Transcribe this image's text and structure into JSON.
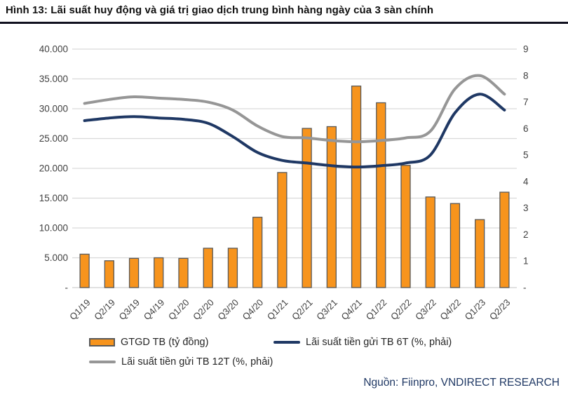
{
  "header": {
    "title": "Hình 13: Lãi suất huy động và giá trị giao dịch trung bình hàng ngày của 3 sàn chính"
  },
  "source": {
    "label": "Nguồn: Fiinpro, VNDIRECT RESEARCH"
  },
  "legend": [
    {
      "label": "GTGD  TB (tỷ đồng)"
    },
    {
      "label": "Lãi suất tiền gửi TB 6T (%, phải)"
    },
    {
      "label": "Lãi suất tiền gửi TB 12T  (%, phải)"
    }
  ],
  "colors": {
    "bar_fill": "#F7941D",
    "bar_border": "#595959",
    "line_6t": "#1F3864",
    "line_12t": "#969696",
    "grid": "#D9D9D9",
    "axis_text": "#404040",
    "title_text": "#111111",
    "source_text": "#1F3864",
    "divider": "#10101F"
  },
  "chart_data": {
    "type": "bar+line",
    "title": "Hình 13: Lãi suất huy động và giá trị giao dịch trung bình hàng ngày của 3 sàn chính",
    "categories": [
      "Q1/19",
      "Q2/19",
      "Q3/19",
      "Q4/19",
      "Q1/20",
      "Q2/20",
      "Q3/20",
      "Q4/20",
      "Q1/21",
      "Q2/21",
      "Q3/21",
      "Q4/21",
      "Q1/22",
      "Q2/22",
      "Q3/22",
      "Q4/22",
      "Q1/23",
      "Q2/23"
    ],
    "series": [
      {
        "name": "GTGD TB (tỷ đồng)",
        "type": "bar",
        "axis": "left",
        "values": [
          5600,
          4500,
          4900,
          5000,
          4900,
          6600,
          6600,
          11800,
          19300,
          26700,
          27000,
          33800,
          31000,
          20500,
          15200,
          14100,
          11400,
          16000
        ]
      },
      {
        "name": "Lãi suất tiền gửi TB 6T (%, phải)",
        "type": "line",
        "axis": "right",
        "values": [
          6.3,
          6.4,
          6.45,
          6.4,
          6.35,
          6.2,
          5.7,
          5.1,
          4.8,
          4.7,
          4.6,
          4.55,
          4.6,
          4.7,
          5.0,
          6.6,
          7.3,
          6.7
        ]
      },
      {
        "name": "Lãi suất tiền gửi TB 12T (%, phải)",
        "type": "line",
        "axis": "right",
        "values": [
          6.95,
          7.1,
          7.2,
          7.15,
          7.1,
          7.0,
          6.7,
          6.1,
          5.7,
          5.65,
          5.55,
          5.5,
          5.55,
          5.65,
          5.9,
          7.5,
          8.0,
          7.3
        ]
      }
    ],
    "left_axis": {
      "min": 0,
      "max": 40000,
      "tick_step": 5000,
      "tick_labels": [
        "-",
        "5.000",
        "10.000",
        "15.000",
        "20.000",
        "25.000",
        "30.000",
        "35.000",
        "40.000"
      ]
    },
    "right_axis": {
      "min": 0,
      "max": 9,
      "tick_step": 1,
      "tick_labels": [
        "-",
        "1",
        "2",
        "3",
        "4",
        "5",
        "6",
        "7",
        "8",
        "9"
      ]
    },
    "grid": true,
    "legend_position": "bottom"
  }
}
